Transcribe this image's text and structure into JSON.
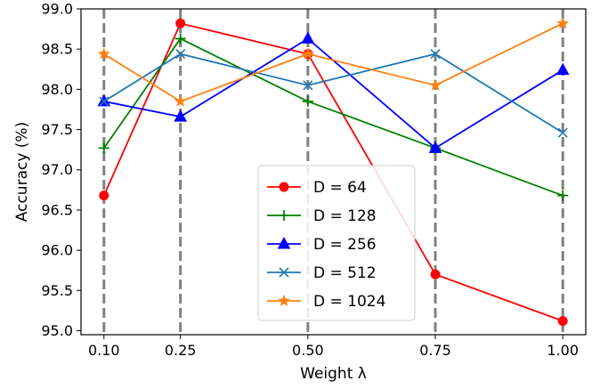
{
  "chart_data": {
    "type": "line",
    "x": [
      0.1,
      0.25,
      0.5,
      0.75,
      1.0
    ],
    "x_tick_labels": [
      "0.10",
      "0.25",
      "0.50",
      "0.75",
      "1.00"
    ],
    "y_ticks": [
      95.0,
      95.5,
      96.0,
      96.5,
      97.0,
      97.5,
      98.0,
      98.5,
      99.0
    ],
    "y_tick_labels": [
      "95.0",
      "95.5",
      "96.0",
      "96.5",
      "97.0",
      "97.5",
      "98.0",
      "98.5",
      "99.0"
    ],
    "xlim": [
      0.055,
      1.045
    ],
    "ylim": [
      94.95,
      99.0
    ],
    "xlabel": "Weight λ",
    "ylabel": "Accuracy (%)",
    "grid": "vertical dashed lines at x ticks",
    "legend_position": "lower-center",
    "series": [
      {
        "name": "D = 64",
        "color": "#ff0000",
        "marker": "circle",
        "values": [
          96.68,
          98.82,
          98.44,
          95.7,
          95.12
        ]
      },
      {
        "name": "D = 128",
        "color": "#008000",
        "marker": "plus",
        "values": [
          97.27,
          98.63,
          97.85,
          97.27,
          96.68
        ]
      },
      {
        "name": "D = 256",
        "color": "#0000ff",
        "marker": "triangle",
        "values": [
          97.85,
          97.66,
          98.63,
          97.27,
          98.24
        ]
      },
      {
        "name": "D = 512",
        "color": "#1f77b4",
        "marker": "x",
        "values": [
          97.85,
          98.44,
          98.05,
          98.44,
          97.46
        ]
      },
      {
        "name": "D = 1024",
        "color": "#ff7f0e",
        "marker": "star",
        "values": [
          98.44,
          97.85,
          98.44,
          98.05,
          98.82
        ]
      }
    ]
  }
}
